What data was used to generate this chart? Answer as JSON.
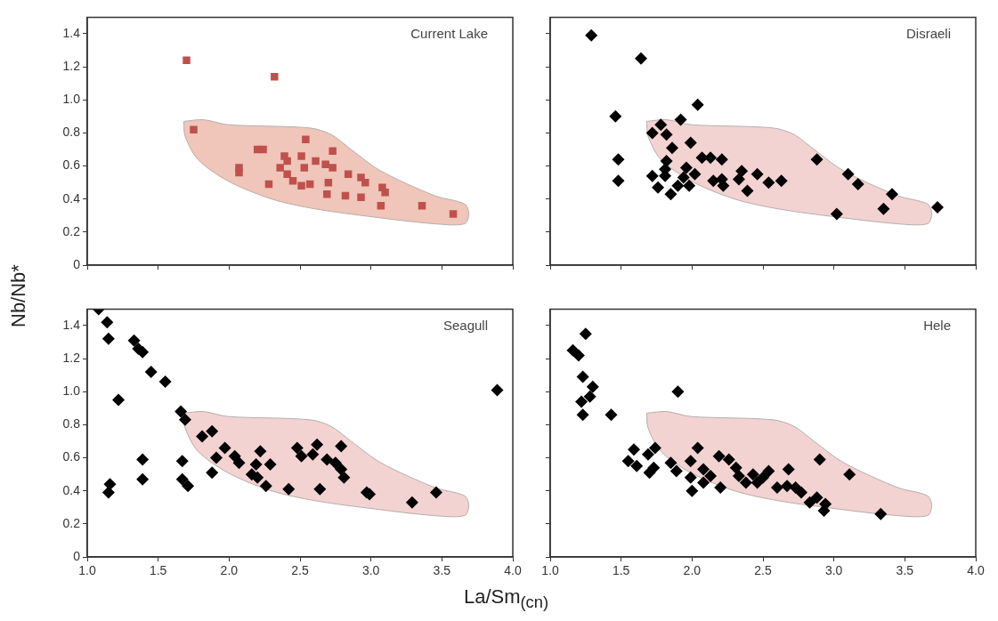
{
  "chart_data": [
    {
      "type": "scatter",
      "title": "Current Lake",
      "xlabel": "La/Sm$_{(cn)}$",
      "ylabel": "Nb/Nb*",
      "xlim": [
        1,
        4
      ],
      "ylim": [
        0,
        1.5
      ],
      "xticks": [
        {
          "value": 1,
          "label": null
        },
        {
          "value": 1.5,
          "label": null
        },
        {
          "value": 2,
          "label": null
        },
        {
          "value": 2.5,
          "label": null
        },
        {
          "value": 3,
          "label": null
        },
        {
          "value": 3.5,
          "label": null
        },
        {
          "value": 4,
          "label": null
        }
      ],
      "yticks": [
        0,
        0.2,
        0.4,
        0.6,
        0.8,
        {
          "value": 1,
          "label": "1.0"
        },
        1.2,
        1.4
      ],
      "tick_labels": "y",
      "series": [
        {
          "type": "area",
          "color": "#efc6b9",
          "x": [
            1.68,
            1.82,
            1.99,
            2.57,
            2.72,
            2.86,
            3.07,
            3.45,
            3.66,
            3.69,
            3.66,
            3.45,
            3.03,
            2.61,
            2.3,
            1.99,
            1.78,
            1.69,
            1.68
          ],
          "values": [
            0.87,
            0.88,
            0.85,
            0.83,
            0.79,
            0.7,
            0.57,
            0.42,
            0.37,
            0.31,
            0.25,
            0.25,
            0.29,
            0.34,
            0.4,
            0.51,
            0.64,
            0.78,
            0.87
          ]
        },
        {
          "type": "scatter",
          "marker": "square",
          "color": "#c0504d",
          "x": [
            1.7,
            2.32,
            1.75,
            2.54,
            2.2,
            2.24,
            2.73,
            2.07,
            2.07,
            2.39,
            2.41,
            2.36,
            2.41,
            2.28,
            2.45,
            2.51,
            2.53,
            2.51,
            2.57,
            2.61,
            2.68,
            2.73,
            2.7,
            2.69,
            2.84,
            2.93,
            2.96,
            2.82,
            2.93,
            3.08,
            3.1,
            3.07,
            3.36,
            3.58
          ],
          "values": [
            1.24,
            1.14,
            0.82,
            0.76,
            0.7,
            0.7,
            0.69,
            0.59,
            0.56,
            0.66,
            0.63,
            0.59,
            0.55,
            0.49,
            0.51,
            0.66,
            0.59,
            0.48,
            0.49,
            0.63,
            0.61,
            0.59,
            0.5,
            0.43,
            0.55,
            0.53,
            0.5,
            0.42,
            0.41,
            0.47,
            0.44,
            0.36,
            0.36,
            0.31
          ]
        }
      ]
    },
    {
      "type": "scatter",
      "title": "Disraeli",
      "xlim": [
        1,
        4
      ],
      "ylim": [
        0,
        1.5
      ],
      "xticks": [
        {
          "value": 1,
          "label": null
        },
        {
          "value": 1.5,
          "label": null
        },
        {
          "value": 2,
          "label": null
        },
        {
          "value": 2.5,
          "label": null
        },
        {
          "value": 3,
          "label": null
        },
        {
          "value": 3.5,
          "label": null
        },
        {
          "value": 4,
          "label": null
        }
      ],
      "yticks": [
        {
          "value": 0,
          "label": null
        },
        {
          "value": 0.2,
          "label": null
        },
        {
          "value": 0.4,
          "label": null
        },
        {
          "value": 0.6,
          "label": null
        },
        {
          "value": 0.8,
          "label": null
        },
        {
          "value": 1,
          "label": null
        },
        {
          "value": 1.2,
          "label": null
        },
        {
          "value": 1.4,
          "label": null
        }
      ],
      "tick_labels": false,
      "series": [
        {
          "type": "area",
          "color": "#f2d3d2",
          "x": [
            1.68,
            1.82,
            1.99,
            2.57,
            2.72,
            2.86,
            3.07,
            3.45,
            3.66,
            3.69,
            3.66,
            3.45,
            3.03,
            2.61,
            2.3,
            1.99,
            1.78,
            1.69,
            1.68
          ],
          "values": [
            0.87,
            0.88,
            0.85,
            0.83,
            0.79,
            0.7,
            0.57,
            0.42,
            0.37,
            0.31,
            0.25,
            0.25,
            0.29,
            0.34,
            0.4,
            0.51,
            0.64,
            0.78,
            0.87
          ]
        },
        {
          "type": "scatter",
          "marker": "diamond",
          "color": "#000000",
          "x": [
            1.29,
            1.64,
            1.46,
            2.04,
            1.48,
            1.48,
            1.92,
            1.78,
            1.72,
            1.82,
            1.99,
            1.86,
            2.07,
            2.13,
            2.21,
            1.82,
            1.81,
            1.72,
            1.81,
            1.76,
            1.85,
            1.9,
            1.96,
            2.02,
            1.98,
            1.94,
            2.15,
            2.21,
            2.22,
            2.35,
            2.33,
            2.46,
            2.39,
            2.54,
            2.63,
            2.88,
            3.1,
            3.17,
            3.02,
            3.41,
            3.35,
            3.73
          ],
          "values": [
            1.39,
            1.25,
            0.9,
            0.97,
            0.64,
            0.51,
            0.88,
            0.85,
            0.8,
            0.79,
            0.74,
            0.71,
            0.65,
            0.65,
            0.64,
            0.63,
            0.58,
            0.54,
            0.54,
            0.47,
            0.43,
            0.48,
            0.59,
            0.55,
            0.48,
            0.53,
            0.51,
            0.52,
            0.48,
            0.57,
            0.52,
            0.55,
            0.45,
            0.5,
            0.51,
            0.64,
            0.55,
            0.49,
            0.31,
            0.43,
            0.34,
            0.35
          ]
        }
      ]
    },
    {
      "type": "scatter",
      "title": "Seagull",
      "xlim": [
        1,
        4
      ],
      "ylim": [
        0,
        1.5
      ],
      "xticks": [
        {
          "value": 1,
          "label": "1.0"
        },
        1.5,
        {
          "value": 2,
          "label": "2.0"
        },
        2.5,
        {
          "value": 3,
          "label": "3.0"
        },
        3.5,
        {
          "value": 4,
          "label": "4.0"
        }
      ],
      "yticks": [
        0,
        0.2,
        0.4,
        0.6,
        0.8,
        {
          "value": 1,
          "label": "1.0"
        },
        1.2,
        1.4
      ],
      "series": [
        {
          "type": "area",
          "color": "#f2d3d2",
          "x": [
            1.68,
            1.82,
            1.99,
            2.57,
            2.72,
            2.86,
            3.07,
            3.45,
            3.66,
            3.69,
            3.66,
            3.45,
            3.03,
            2.61,
            2.3,
            1.99,
            1.78,
            1.69,
            1.68
          ],
          "values": [
            0.87,
            0.88,
            0.85,
            0.83,
            0.79,
            0.7,
            0.57,
            0.42,
            0.37,
            0.31,
            0.25,
            0.25,
            0.29,
            0.34,
            0.4,
            0.51,
            0.64,
            0.78,
            0.87
          ]
        },
        {
          "type": "scatter",
          "marker": "diamond",
          "color": "#000000",
          "x": [
            1.08,
            1.14,
            1.15,
            1.33,
            1.36,
            1.39,
            1.45,
            1.55,
            1.22,
            1.66,
            1.69,
            1.39,
            1.39,
            1.16,
            1.15,
            1.67,
            1.67,
            1.71,
            1.88,
            1.81,
            1.88,
            1.91,
            1.97,
            2.04,
            2.07,
            2.22,
            2.19,
            2.29,
            2.16,
            2.2,
            2.26,
            2.42,
            2.48,
            2.51,
            2.62,
            2.59,
            2.69,
            2.75,
            2.79,
            2.79,
            2.81,
            2.64,
            2.97,
            2.99,
            3.29,
            3.46,
            3.89
          ],
          "values": [
            1.5,
            1.42,
            1.32,
            1.31,
            1.26,
            1.24,
            1.12,
            1.06,
            0.95,
            0.88,
            0.83,
            0.59,
            0.47,
            0.44,
            0.39,
            0.58,
            0.47,
            0.43,
            0.51,
            0.73,
            0.76,
            0.6,
            0.66,
            0.61,
            0.57,
            0.64,
            0.56,
            0.56,
            0.5,
            0.48,
            0.43,
            0.41,
            0.66,
            0.61,
            0.68,
            0.62,
            0.59,
            0.57,
            0.67,
            0.53,
            0.48,
            0.41,
            0.39,
            0.38,
            0.33,
            0.39,
            1.01
          ]
        }
      ]
    },
    {
      "type": "scatter",
      "title": "Hele",
      "xlim": [
        1,
        4
      ],
      "ylim": [
        0,
        1.5
      ],
      "xticks": [
        {
          "value": 1,
          "label": "1.0"
        },
        1.5,
        {
          "value": 2,
          "label": "2.0"
        },
        2.5,
        {
          "value": 3,
          "label": "3.0"
        },
        3.5,
        {
          "value": 4,
          "label": "4.0"
        }
      ],
      "yticks": [
        {
          "value": 0,
          "label": null
        },
        {
          "value": 0.2,
          "label": null
        },
        {
          "value": 0.4,
          "label": null
        },
        {
          "value": 0.6,
          "label": null
        },
        {
          "value": 0.8,
          "label": null
        },
        {
          "value": 1,
          "label": null
        },
        {
          "value": 1.2,
          "label": null
        },
        {
          "value": 1.4,
          "label": null
        }
      ],
      "tick_labels": "x",
      "series": [
        {
          "type": "area",
          "color": "#f2d3d2",
          "x": [
            1.68,
            1.82,
            1.99,
            2.57,
            2.72,
            2.86,
            3.07,
            3.45,
            3.66,
            3.69,
            3.66,
            3.45,
            3.03,
            2.61,
            2.3,
            1.99,
            1.78,
            1.69,
            1.68
          ],
          "values": [
            0.87,
            0.88,
            0.85,
            0.83,
            0.79,
            0.7,
            0.57,
            0.42,
            0.37,
            0.31,
            0.25,
            0.25,
            0.29,
            0.34,
            0.4,
            0.51,
            0.64,
            0.78,
            0.87
          ]
        },
        {
          "type": "scatter",
          "marker": "diamond",
          "color": "#000000",
          "x": [
            1.25,
            1.16,
            1.2,
            1.23,
            1.3,
            1.28,
            1.22,
            1.23,
            1.43,
            1.9,
            1.59,
            1.74,
            1.69,
            1.55,
            1.61,
            1.73,
            1.7,
            1.85,
            1.89,
            2.04,
            1.99,
            1.99,
            2.0,
            2.08,
            2.13,
            2.08,
            2.19,
            2.26,
            2.2,
            2.31,
            2.33,
            2.38,
            2.43,
            2.46,
            2.5,
            2.54,
            2.68,
            2.6,
            2.67,
            2.73,
            2.77,
            2.83,
            2.88,
            2.94,
            2.93,
            2.9,
            3.11,
            3.33
          ],
          "values": [
            1.35,
            1.25,
            1.22,
            1.09,
            1.03,
            0.97,
            0.94,
            0.86,
            0.86,
            1.0,
            0.65,
            0.66,
            0.62,
            0.58,
            0.55,
            0.54,
            0.51,
            0.57,
            0.52,
            0.66,
            0.58,
            0.48,
            0.4,
            0.53,
            0.49,
            0.45,
            0.61,
            0.59,
            0.42,
            0.54,
            0.49,
            0.45,
            0.5,
            0.45,
            0.48,
            0.52,
            0.53,
            0.42,
            0.43,
            0.42,
            0.39,
            0.33,
            0.36,
            0.32,
            0.28,
            0.59,
            0.5,
            0.26
          ]
        }
      ]
    }
  ]
}
